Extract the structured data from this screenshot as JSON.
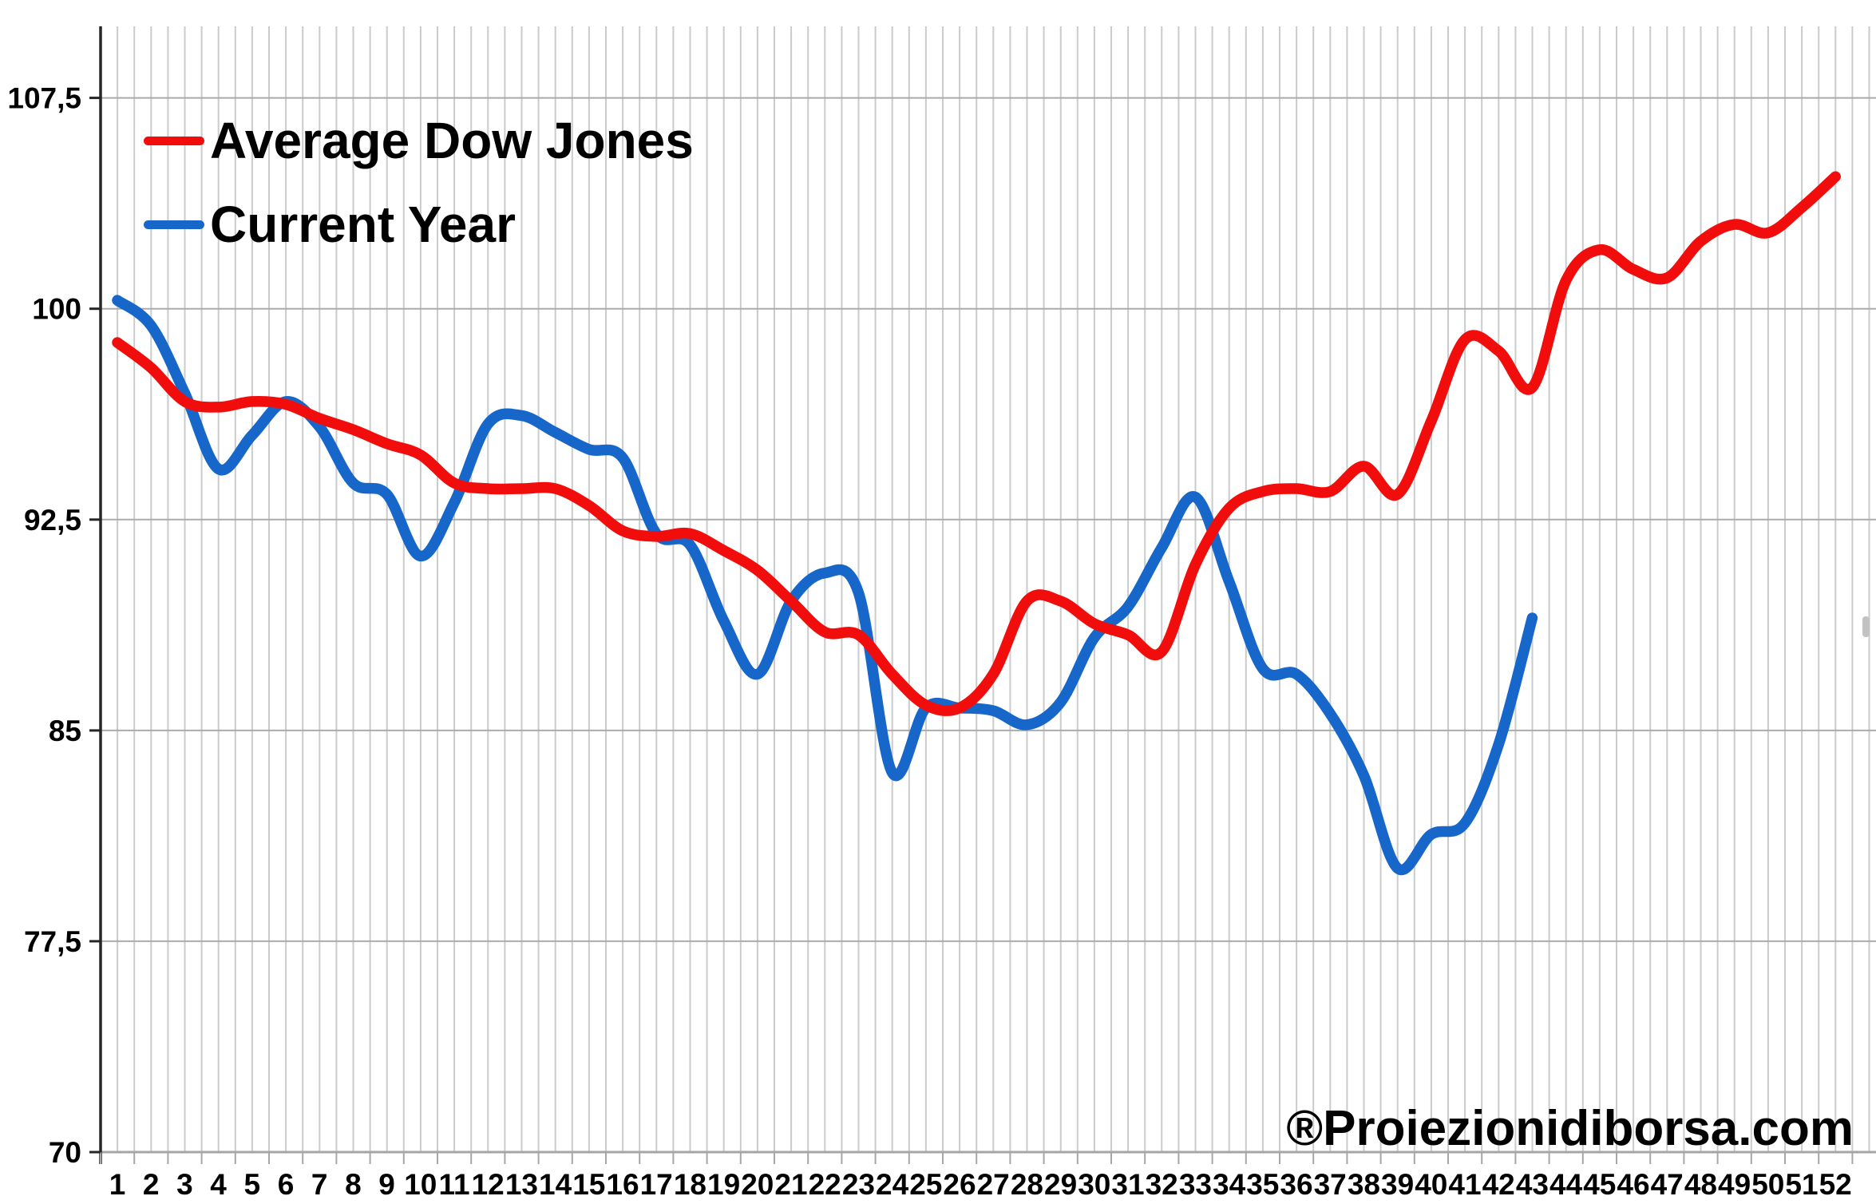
{
  "legend": {
    "items": [
      {
        "label": "Average Dow Jones",
        "color": "#f20d0d"
      },
      {
        "label": "Current Year",
        "color": "#1667c9"
      }
    ]
  },
  "watermark": "®Proiezionidiborsa.com",
  "colors": {
    "red_series": "#f20d0d",
    "blue_series": "#1667c9",
    "vertical_grid": "#cbcbcb",
    "horizontal_grid": "#ababab",
    "x_axis_line": "#a6a6a6",
    "y_axis_line": "#262626",
    "label_text": "#000000"
  },
  "chart_data": {
    "type": "line",
    "title": "",
    "xlabel": "",
    "ylabel": "",
    "grid": true,
    "legend_position": "top-left",
    "ylim": [
      70,
      110.1
    ],
    "y_ticks": [
      {
        "label": "70",
        "value": 70
      },
      {
        "label": "77,5",
        "value": 77.5
      },
      {
        "label": "85",
        "value": 85
      },
      {
        "label": "92,5",
        "value": 92.5
      },
      {
        "label": "100",
        "value": 100
      },
      {
        "label": "107,5",
        "value": 107.5
      }
    ],
    "x_labels": [
      "1",
      "2",
      "3",
      "4",
      "5",
      "6",
      "7",
      "8",
      "9",
      "10",
      "11",
      "12",
      "13",
      "14",
      "15",
      "16",
      "17",
      "18",
      "19",
      "20",
      "21",
      "22",
      "23",
      "24",
      "25",
      "26",
      "27",
      "28",
      "29",
      "30",
      "31",
      "32",
      "33",
      "34",
      "35",
      "36",
      "37",
      "38",
      "39",
      "40",
      "41",
      "42",
      "43",
      "44",
      "45",
      "46",
      "47",
      "48",
      "49",
      "50",
      "51",
      "52"
    ],
    "series": [
      {
        "name": "Average Dow Jones",
        "color": "#f20d0d",
        "values": [
          98.8,
          97.9,
          96.7,
          96.5,
          96.7,
          96.6,
          96.1,
          95.7,
          95.2,
          94.8,
          93.8,
          93.6,
          93.6,
          93.6,
          93.0,
          92.1,
          91.9,
          92.0,
          91.4,
          90.7,
          89.6,
          88.5,
          88.4,
          87.0,
          85.9,
          85.8,
          87.0,
          89.6,
          89.6,
          88.8,
          88.4,
          87.8,
          90.9,
          92.9,
          93.5,
          93.6,
          93.5,
          94.4,
          93.4,
          96.0,
          98.9,
          98.5,
          97.2,
          101.0,
          102.1,
          101.4,
          101.1,
          102.4,
          103.0,
          102.7,
          103.6,
          104.7
        ]
      },
      {
        "name": "Current Year",
        "color": "#1667c9",
        "values": [
          100.3,
          99.4,
          97.0,
          94.3,
          95.5,
          96.7,
          95.8,
          93.8,
          93.4,
          91.2,
          93.1,
          95.9,
          96.2,
          95.6,
          95.0,
          94.7,
          92.0,
          91.6,
          88.9,
          87.0,
          89.6,
          90.6,
          89.9,
          83.5,
          85.8,
          85.8,
          85.7,
          85.2,
          86.0,
          88.3,
          89.4,
          91.5,
          93.3,
          90.3,
          87.2,
          87.0,
          85.6,
          83.4,
          80.1,
          81.3,
          81.7,
          84.5,
          89.0
        ]
      }
    ]
  }
}
